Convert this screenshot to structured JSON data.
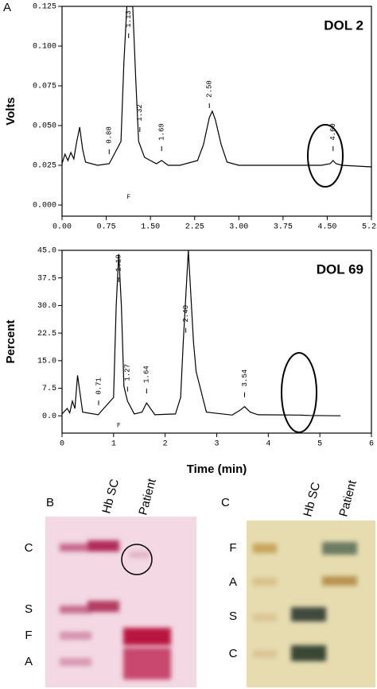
{
  "chart_data": [
    {
      "type": "line",
      "panel": "A",
      "annotation": "DOL 2",
      "ylabel": "Volts",
      "x": [
        0.0,
        0.05,
        0.1,
        0.15,
        0.2,
        0.25,
        0.3,
        0.35,
        0.4,
        0.6,
        0.8,
        1.0,
        1.05,
        1.1,
        1.2,
        1.25,
        1.3,
        1.4,
        1.6,
        1.69,
        1.8,
        2.0,
        2.3,
        2.4,
        2.5,
        2.55,
        2.6,
        2.7,
        2.8,
        3.0,
        3.5,
        4.4,
        4.55,
        4.6,
        4.65,
        4.75,
        5.25
      ],
      "series": [
        {
          "color": "#000000",
          "values": [
            0.026,
            0.032,
            0.028,
            0.033,
            0.029,
            0.04,
            0.049,
            0.035,
            0.027,
            0.025,
            0.026,
            0.04,
            0.09,
            0.125,
            0.125,
            0.08,
            0.04,
            0.03,
            0.026,
            0.028,
            0.025,
            0.025,
            0.028,
            0.038,
            0.055,
            0.059,
            0.054,
            0.038,
            0.027,
            0.025,
            0.025,
            0.025,
            0.026,
            0.028,
            0.026,
            0.025,
            0.024
          ]
        }
      ],
      "xlim": [
        0,
        5.25
      ],
      "ylim": [
        -0.007,
        0.125
      ],
      "xticks": [
        {
          "value": 0,
          "label": "0.00"
        },
        {
          "value": 0.75,
          "label": "0.75"
        },
        {
          "value": 1.5,
          "label": "1.50"
        },
        {
          "value": 2.25,
          "label": "2.25"
        },
        {
          "value": 3,
          "label": "3.00"
        },
        {
          "value": 3.75,
          "label": "3.75"
        },
        {
          "value": 4.5,
          "label": "4.50"
        },
        {
          "value": 5.25,
          "label": "5.25"
        }
      ],
      "yticks": [
        {
          "value": 0,
          "label": "0.000"
        },
        {
          "value": 0.025,
          "label": "0.025"
        },
        {
          "value": 0.05,
          "label": "0.050"
        },
        {
          "value": 0.075,
          "label": "0.075"
        },
        {
          "value": 0.1,
          "label": "0.100"
        },
        {
          "value": 0.125,
          "label": "0.125"
        }
      ],
      "peak_labels": [
        {
          "value": 0.8,
          "label": "0.80"
        },
        {
          "value": 1.13,
          "label": "1.13"
        },
        {
          "value": 1.32,
          "label": "1.32"
        },
        {
          "value": 1.69,
          "label": "1.69"
        },
        {
          "value": 2.5,
          "label": "2.50"
        },
        {
          "value": 4.6,
          "label": "4.60"
        }
      ],
      "peak_marker": "F"
    },
    {
      "type": "line",
      "annotation": "DOL 69",
      "ylabel": "Percent",
      "xlabel": "Time (min)",
      "x": [
        0.0,
        0.1,
        0.15,
        0.2,
        0.25,
        0.3,
        0.4,
        0.7,
        1.0,
        1.05,
        1.1,
        1.15,
        1.2,
        1.27,
        1.4,
        1.55,
        1.64,
        1.8,
        2.2,
        2.3,
        2.35,
        2.45,
        2.55,
        2.6,
        2.8,
        3.3,
        3.45,
        3.54,
        3.65,
        3.8,
        4.6,
        4.8,
        5.4
      ],
      "series": [
        {
          "color": "#000000",
          "values": [
            0.5,
            2,
            0.8,
            4,
            2,
            11,
            1,
            0.3,
            5,
            30,
            44,
            30,
            8,
            4,
            0.5,
            1,
            3.5,
            0.3,
            0.5,
            5,
            20,
            45,
            20,
            12,
            1,
            0.2,
            1.5,
            2.5,
            1,
            0.3,
            0.2,
            0.1,
            0
          ]
        }
      ],
      "xlim": [
        0,
        6
      ],
      "ylim": [
        -4.7,
        45
      ],
      "xticks": [
        0,
        1,
        2,
        3,
        4,
        5,
        6
      ],
      "yticks": [
        {
          "value": 0,
          "label": "0.0"
        },
        {
          "value": 7.5,
          "label": "7.5"
        },
        {
          "value": 15,
          "label": "15.0"
        },
        {
          "value": 22.5,
          "label": "22.5"
        },
        {
          "value": 30,
          "label": "30.0"
        },
        {
          "value": 37.5,
          "label": "37.5"
        },
        {
          "value": 45,
          "label": "45.0"
        }
      ],
      "peak_labels": [
        {
          "value": 0.71,
          "label": "0.71"
        },
        {
          "value": 1.1,
          "label": "1.10"
        },
        {
          "value": 1.27,
          "label": "1.27"
        },
        {
          "value": 1.64,
          "label": "1.64"
        },
        {
          "value": 2.4,
          "label": "2.40"
        },
        {
          "value": 3.54,
          "label": "3.54"
        }
      ],
      "peak_marker": "F"
    }
  ],
  "gels": [
    {
      "panel": "B",
      "lanes": [
        "Hb SC",
        "Patient"
      ],
      "bands": [
        "C",
        "S",
        "F",
        "A"
      ]
    },
    {
      "panel": "C",
      "lanes": [
        "Hb SC",
        "Patient"
      ],
      "bands": [
        "F",
        "A",
        "S",
        "C"
      ]
    }
  ]
}
